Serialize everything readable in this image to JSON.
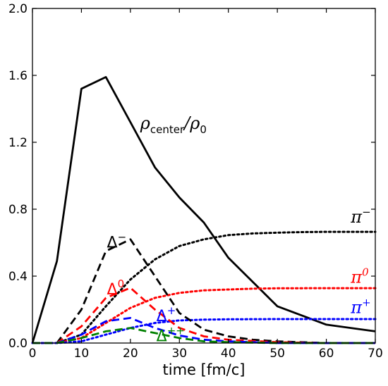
{
  "chart_data": {
    "type": "line",
    "xlabel": "time [fm/c]",
    "ylabel": "",
    "xlim": [
      0,
      70
    ],
    "ylim": [
      0,
      2.0
    ],
    "xticks": [
      0,
      10,
      20,
      30,
      40,
      50,
      60,
      70
    ],
    "xtick_labels": [
      "0",
      "10",
      "20",
      "30",
      "40",
      "50",
      "60",
      "70"
    ],
    "yticks": [
      0.0,
      0.4,
      0.8,
      1.2,
      1.6,
      2.0
    ],
    "ytick_labels": [
      "0.0",
      "0.4",
      "0.8",
      "1.2",
      "1.6",
      "2.0"
    ],
    "grid": false,
    "series": [
      {
        "id": "rho",
        "color": "#000000",
        "style": "solid",
        "x": [
          0,
          5,
          10,
          15,
          20,
          25,
          30,
          35,
          40,
          50,
          60,
          70
        ],
        "y": [
          0.0,
          0.49,
          1.52,
          1.59,
          1.32,
          1.05,
          0.87,
          0.72,
          0.51,
          0.22,
          0.11,
          0.07
        ]
      },
      {
        "id": "pi_minus",
        "color": "#000000",
        "style": "dotted",
        "x": [
          0,
          5,
          10,
          15,
          20,
          25,
          30,
          35,
          40,
          45,
          50,
          55,
          60,
          65,
          70
        ],
        "y": [
          0.0,
          0.0,
          0.05,
          0.22,
          0.38,
          0.5,
          0.58,
          0.62,
          0.645,
          0.655,
          0.66,
          0.663,
          0.665,
          0.665,
          0.665
        ]
      },
      {
        "id": "pi_zero",
        "color": "#ff0000",
        "style": "dotted",
        "x": [
          0,
          5,
          10,
          15,
          20,
          25,
          30,
          35,
          40,
          45,
          50,
          60,
          70
        ],
        "y": [
          0.0,
          0.0,
          0.03,
          0.12,
          0.21,
          0.27,
          0.3,
          0.315,
          0.32,
          0.325,
          0.327,
          0.328,
          0.328
        ]
      },
      {
        "id": "pi_plus",
        "color": "#0000ff",
        "style": "dotted",
        "x": [
          0,
          5,
          10,
          15,
          20,
          25,
          30,
          35,
          40,
          50,
          60,
          70
        ],
        "y": [
          0.0,
          0.0,
          0.01,
          0.05,
          0.09,
          0.12,
          0.135,
          0.14,
          0.142,
          0.143,
          0.143,
          0.143
        ]
      },
      {
        "id": "delta_minus",
        "color": "#000000",
        "style": "dashed",
        "x": [
          0,
          5,
          10,
          15,
          20,
          25,
          30,
          35,
          40,
          45,
          50,
          60,
          70
        ],
        "y": [
          0.0,
          0.0,
          0.2,
          0.55,
          0.62,
          0.4,
          0.18,
          0.08,
          0.04,
          0.02,
          0.01,
          0.0,
          0.0
        ]
      },
      {
        "id": "delta_zero",
        "color": "#ff0000",
        "style": "dashed",
        "x": [
          0,
          5,
          10,
          15,
          20,
          25,
          30,
          35,
          40,
          50,
          60,
          70
        ],
        "y": [
          0.0,
          0.0,
          0.1,
          0.27,
          0.33,
          0.2,
          0.09,
          0.04,
          0.02,
          0.005,
          0.0,
          0.0
        ]
      },
      {
        "id": "delta_plus",
        "color": "#0000ff",
        "style": "dashed",
        "x": [
          0,
          5,
          10,
          15,
          20,
          25,
          30,
          35,
          40,
          50,
          60,
          70
        ],
        "y": [
          0.0,
          0.0,
          0.05,
          0.13,
          0.15,
          0.09,
          0.045,
          0.02,
          0.01,
          0.0,
          0.0,
          0.0
        ]
      },
      {
        "id": "delta_pp",
        "color": "#008000",
        "style": "dashed",
        "x": [
          0,
          5,
          10,
          15,
          20,
          25,
          30,
          35,
          40,
          50,
          60,
          70
        ],
        "y": [
          0.0,
          0.0,
          0.03,
          0.07,
          0.09,
          0.06,
          0.03,
          0.01,
          0.005,
          0.0,
          0.0,
          0.0
        ]
      }
    ],
    "annotations": [
      {
        "id": "rho-label",
        "base": "ρ",
        "sub": "center",
        "tail": "/ρ",
        "sub2": "0",
        "color": "#000000",
        "x": 22,
        "y": 1.28
      },
      {
        "id": "pi-minus-label",
        "base": "π",
        "sup": "−",
        "color": "#000000",
        "x": 65,
        "y": 0.72
      },
      {
        "id": "pi-zero-label",
        "base": "π",
        "sup": "0",
        "color": "#ff0000",
        "x": 65,
        "y": 0.36
      },
      {
        "id": "pi-plus-label",
        "base": "π",
        "sup": "+",
        "color": "#0000ff",
        "x": 65,
        "y": 0.18
      },
      {
        "id": "delta-minus-label",
        "base": "Δ",
        "sup": "−",
        "color": "#000000",
        "x": 15.2,
        "y": 0.57
      },
      {
        "id": "delta-zero-label",
        "base": "Δ",
        "sup": "0",
        "color": "#ff0000",
        "x": 15.2,
        "y": 0.29
      },
      {
        "id": "delta-plus-label",
        "base": "Δ",
        "sup": "+",
        "color": "#0000ff",
        "x": 25.3,
        "y": 0.13
      },
      {
        "id": "delta-pp-label",
        "base": "Δ",
        "sup": "++",
        "color": "#008000",
        "x": 25.3,
        "y": 0.01
      }
    ]
  }
}
